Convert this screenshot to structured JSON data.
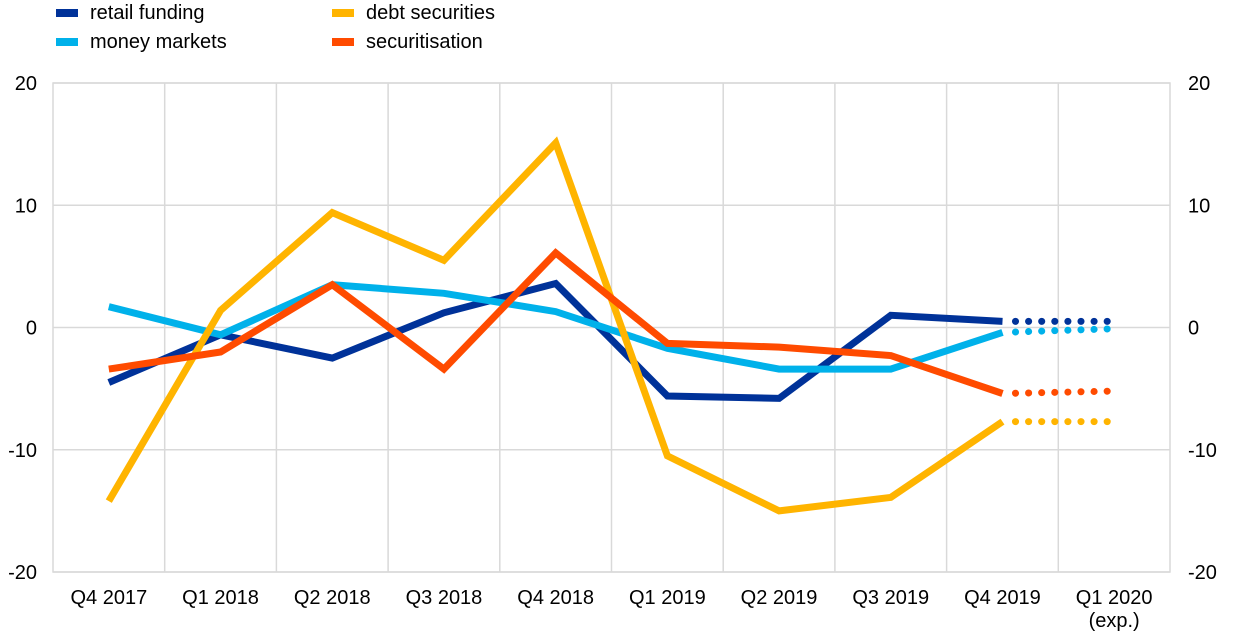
{
  "legend": {
    "retail_funding": "retail funding",
    "money_markets": "money markets",
    "debt_securities": "debt securities",
    "securitisation": "securitisation"
  },
  "colors": {
    "retail_funding": "#003299",
    "money_markets": "#00B1EA",
    "debt_securities": "#FFB400",
    "securitisation": "#FF4B00",
    "grid": "#D9D9D9"
  },
  "chart_data": {
    "type": "line",
    "categories": [
      "Q4 2017",
      "Q1 2018",
      "Q2 2018",
      "Q3 2018",
      "Q4 2018",
      "Q1 2019",
      "Q2 2019",
      "Q3 2019",
      "Q4 2019",
      "Q1 2020"
    ],
    "category_sublabels": [
      "",
      "",
      "",
      "",
      "",
      "",
      "",
      "",
      "",
      "(exp.)"
    ],
    "ylim": [
      -20,
      20
    ],
    "yticks": [
      -20,
      -10,
      0,
      10,
      20
    ],
    "grid": true,
    "legend_position": "top-left",
    "expected_from_index": 8,
    "series": [
      {
        "key": "retail_funding",
        "name": "retail funding",
        "values": [
          -4.5,
          -0.6,
          -2.5,
          1.2,
          3.6,
          -5.6,
          -5.8,
          1.0,
          0.5,
          0.5
        ]
      },
      {
        "key": "money_markets",
        "name": "money markets",
        "values": [
          1.7,
          -0.6,
          3.5,
          2.8,
          1.3,
          -1.7,
          -3.4,
          -3.4,
          -0.4,
          -0.1
        ]
      },
      {
        "key": "debt_securities",
        "name": "debt securities",
        "values": [
          -14.2,
          1.4,
          9.4,
          5.5,
          15.1,
          -10.5,
          -15.0,
          -13.9,
          -7.7,
          -7.7
        ]
      },
      {
        "key": "securitisation",
        "name": "securitisation",
        "values": [
          -3.4,
          -2.0,
          3.5,
          -3.4,
          6.1,
          -1.3,
          -1.6,
          -2.3,
          -5.4,
          -5.2
        ]
      }
    ]
  }
}
